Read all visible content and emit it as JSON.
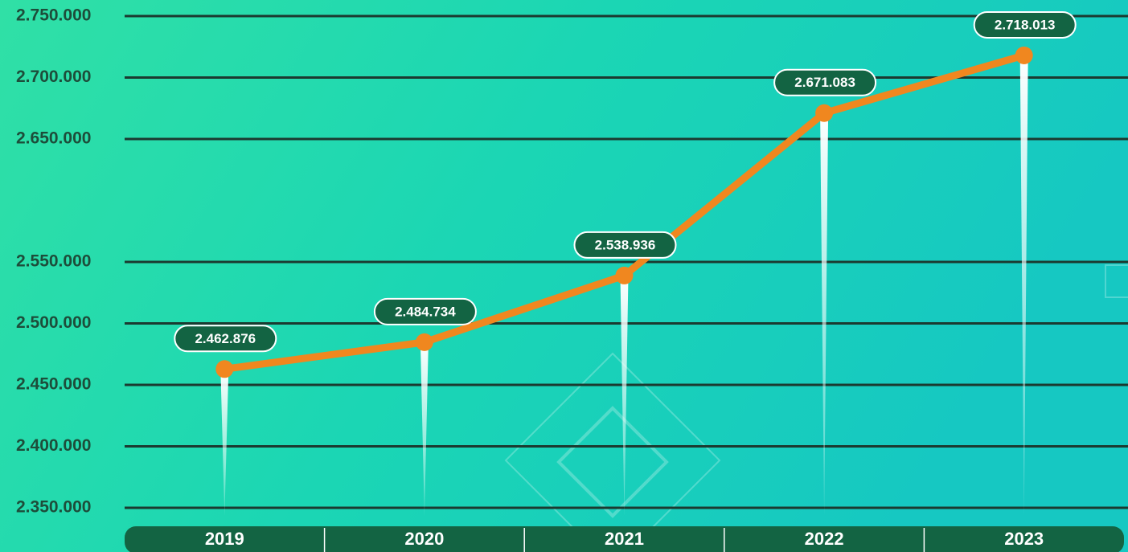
{
  "chart_data": {
    "type": "line",
    "categories": [
      "2019",
      "2020",
      "2021",
      "2022",
      "2023"
    ],
    "values": [
      2462876,
      2484734,
      2538936,
      2671083,
      2718013
    ],
    "value_labels": [
      "2.462.876",
      "2.484.734",
      "2.538.936",
      "2.671.083",
      "2.718.013"
    ],
    "color": "#f0871f",
    "ylim": [
      2350000,
      2750000
    ],
    "yticks": [
      {
        "value": 2350000,
        "label": "2.350.000"
      },
      {
        "value": 2400000,
        "label": "2.400.000"
      },
      {
        "value": 2450000,
        "label": "2.450.000"
      },
      {
        "value": 2500000,
        "label": "2.500.000"
      },
      {
        "value": 2550000,
        "label": "2.550.000"
      },
      {
        "value": 2650000,
        "label": "2.650.000"
      },
      {
        "value": 2700000,
        "label": "2.700.000"
      },
      {
        "value": 2750000,
        "label": "2.750.000"
      }
    ],
    "grid": true
  }
}
